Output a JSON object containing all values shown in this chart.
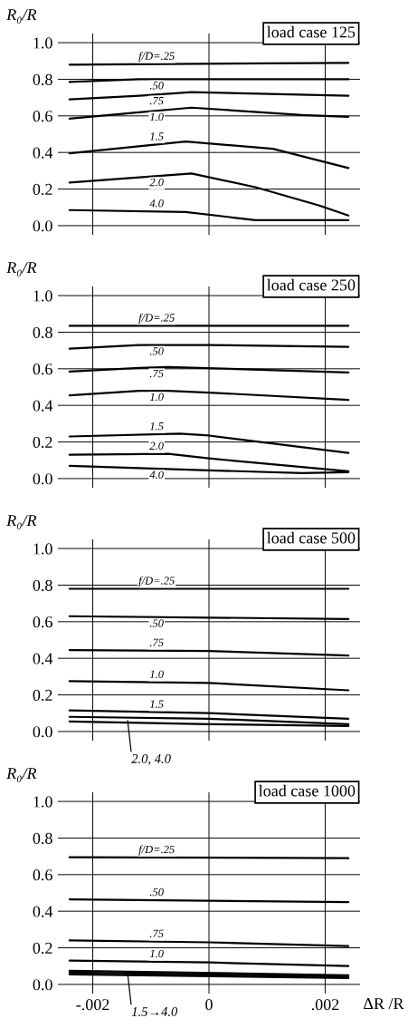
{
  "chart_data": [
    {
      "type": "line",
      "title": "load case 125",
      "ylabel": "R₀/R",
      "xlim": [
        -0.0026,
        0.0026
      ],
      "ylim": [
        -0.05,
        1.05
      ],
      "tick_labels": "y",
      "grid": true,
      "xticks": [
        {
          "value": -0.002,
          "label": null
        },
        {
          "value": 0,
          "label": null
        },
        {
          "value": 0.002,
          "label": null
        }
      ],
      "yticks": [
        {
          "value": 0,
          "label": "0.0"
        },
        {
          "value": 0.2,
          "label": "0.2"
        },
        {
          "value": 0.4,
          "label": "0.4"
        },
        {
          "value": 0.6,
          "label": "0.6"
        },
        {
          "value": 0.8,
          "label": "0.8"
        },
        {
          "value": 1.0,
          "label": "1.0"
        }
      ],
      "series": [
        {
          "name": "f/D=.25",
          "color": "#000000",
          "x": [
            -0.0024,
            0.0024
          ],
          "values": [
            0.88,
            0.89
          ]
        },
        {
          "name": ".50",
          "color": "#000000",
          "x": [
            -0.0024,
            -0.0012,
            0.0024
          ],
          "values": [
            0.785,
            0.8,
            0.8
          ]
        },
        {
          "name": ".75",
          "color": "#000000",
          "x": [
            -0.0024,
            -0.0012,
            -0.0003,
            0.0024
          ],
          "values": [
            0.69,
            0.71,
            0.73,
            0.71
          ]
        },
        {
          "name": "1.0",
          "color": "#000000",
          "x": [
            -0.0024,
            -0.0012,
            -0.0003,
            0.0016,
            0.0024
          ],
          "values": [
            0.585,
            0.62,
            0.645,
            0.605,
            0.595
          ]
        },
        {
          "name": "1.5",
          "color": "#000000",
          "x": [
            -0.0024,
            -0.0004,
            0.0011,
            0.0024
          ],
          "values": [
            0.395,
            0.46,
            0.42,
            0.315
          ]
        },
        {
          "name": "2.0",
          "color": "#000000",
          "x": [
            -0.0024,
            -0.0003,
            0.0008,
            0.0019,
            0.0024
          ],
          "values": [
            0.235,
            0.285,
            0.21,
            0.11,
            0.055
          ]
        },
        {
          "name": "4.0",
          "color": "#000000",
          "x": [
            -0.0024,
            -0.0004,
            0.0008,
            0.0024
          ],
          "values": [
            0.085,
            0.075,
            0.03,
            0.03
          ]
        }
      ]
    },
    {
      "type": "line",
      "title": "load case 250",
      "ylabel": "R₀/R",
      "xlim": [
        -0.0026,
        0.0026
      ],
      "ylim": [
        -0.05,
        1.05
      ],
      "tick_labels": "y",
      "grid": true,
      "xticks": [
        {
          "value": -0.002,
          "label": null
        },
        {
          "value": 0,
          "label": null
        },
        {
          "value": 0.002,
          "label": null
        }
      ],
      "yticks": [
        {
          "value": 0,
          "label": "0.0"
        },
        {
          "value": 0.2,
          "label": "0.2"
        },
        {
          "value": 0.4,
          "label": "0.4"
        },
        {
          "value": 0.6,
          "label": "0.6"
        },
        {
          "value": 0.8,
          "label": "0.8"
        },
        {
          "value": 1.0,
          "label": "1.0"
        }
      ],
      "series": [
        {
          "name": "f/D=.25",
          "color": "#000000",
          "x": [
            -0.0024,
            0.0024
          ],
          "values": [
            0.835,
            0.835
          ]
        },
        {
          "name": ".50",
          "color": "#000000",
          "x": [
            -0.0024,
            -0.0012,
            0.0,
            0.0024
          ],
          "values": [
            0.71,
            0.73,
            0.73,
            0.72
          ]
        },
        {
          "name": ".75",
          "color": "#000000",
          "x": [
            -0.0024,
            -0.0012,
            -0.0007,
            0.0024
          ],
          "values": [
            0.585,
            0.605,
            0.61,
            0.58
          ]
        },
        {
          "name": "1.0",
          "color": "#000000",
          "x": [
            -0.0024,
            -0.0012,
            -0.0007,
            0.0,
            0.0024
          ],
          "values": [
            0.455,
            0.48,
            0.48,
            0.47,
            0.43
          ]
        },
        {
          "name": "1.5",
          "color": "#000000",
          "x": [
            -0.0024,
            -0.0005,
            0.0,
            0.0024
          ],
          "values": [
            0.23,
            0.245,
            0.235,
            0.14
          ]
        },
        {
          "name": "2.0",
          "color": "#000000",
          "x": [
            -0.0024,
            -0.0007,
            0.0,
            0.0024
          ],
          "values": [
            0.13,
            0.135,
            0.11,
            0.04
          ]
        },
        {
          "name": "4.0",
          "color": "#000000",
          "x": [
            -0.0024,
            0.0,
            0.0016,
            0.0024
          ],
          "values": [
            0.07,
            0.045,
            0.03,
            0.035
          ]
        }
      ]
    },
    {
      "type": "line",
      "title": "load case 500",
      "ylabel": "R₀/R",
      "xlim": [
        -0.0026,
        0.0026
      ],
      "ylim": [
        -0.05,
        1.05
      ],
      "tick_labels": "y",
      "grid": true,
      "xticks": [
        {
          "value": -0.002,
          "label": null
        },
        {
          "value": 0,
          "label": null
        },
        {
          "value": 0.002,
          "label": null
        }
      ],
      "yticks": [
        {
          "value": 0,
          "label": "0.0"
        },
        {
          "value": 0.2,
          "label": "0.2"
        },
        {
          "value": 0.4,
          "label": "0.4"
        },
        {
          "value": 0.6,
          "label": "0.6"
        },
        {
          "value": 0.8,
          "label": "0.8"
        },
        {
          "value": 1.0,
          "label": "1.0"
        }
      ],
      "annotations": [
        {
          "text": "2.0, 4.0",
          "x": -0.0014,
          "y": 0.06
        }
      ],
      "series": [
        {
          "name": "f/D=.25",
          "color": "#000000",
          "x": [
            -0.0024,
            0.0024
          ],
          "values": [
            0.78,
            0.78
          ]
        },
        {
          "name": ".50",
          "color": "#000000",
          "x": [
            -0.0024,
            0.0024
          ],
          "values": [
            0.63,
            0.615
          ]
        },
        {
          "name": ".75",
          "color": "#000000",
          "x": [
            -0.0024,
            0.0,
            0.0024
          ],
          "values": [
            0.445,
            0.44,
            0.415
          ]
        },
        {
          "name": "1.0",
          "color": "#000000",
          "x": [
            -0.0024,
            0.0,
            0.0024
          ],
          "values": [
            0.275,
            0.265,
            0.225
          ]
        },
        {
          "name": "1.5",
          "color": "#000000",
          "x": [
            -0.0024,
            0.0,
            0.0024
          ],
          "values": [
            0.115,
            0.1,
            0.07
          ]
        },
        {
          "color": "#000000",
          "x": [
            -0.0024,
            0.0,
            0.0024
          ],
          "values": [
            0.08,
            0.07,
            0.04
          ]
        },
        {
          "color": "#000000",
          "x": [
            -0.0024,
            0.0,
            0.0024
          ],
          "values": [
            0.055,
            0.04,
            0.03
          ]
        }
      ]
    },
    {
      "type": "line",
      "title": "load case 1000",
      "ylabel": "R₀/R",
      "xlabel": "ΔR /R",
      "xlim": [
        -0.0026,
        0.0026
      ],
      "ylim": [
        -0.05,
        1.05
      ],
      "grid": true,
      "xticks": [
        {
          "value": -0.002,
          "label": "-.002"
        },
        {
          "value": 0,
          "label": "0"
        },
        {
          "value": 0.002,
          "label": ".002"
        }
      ],
      "yticks": [
        {
          "value": 0,
          "label": "0.0"
        },
        {
          "value": 0.2,
          "label": "0.2"
        },
        {
          "value": 0.4,
          "label": "0.4"
        },
        {
          "value": 0.6,
          "label": "0.6"
        },
        {
          "value": 0.8,
          "label": "0.8"
        },
        {
          "value": 1.0,
          "label": "1.0"
        }
      ],
      "annotations": [
        {
          "text": "1.5→4.0",
          "x": -0.0014,
          "y": 0.06
        }
      ],
      "series": [
        {
          "name": "f/D=.25",
          "color": "#000000",
          "x": [
            -0.0024,
            0.0024
          ],
          "values": [
            0.695,
            0.69
          ]
        },
        {
          "name": ".50",
          "color": "#000000",
          "x": [
            -0.0024,
            0.0024
          ],
          "values": [
            0.465,
            0.45
          ]
        },
        {
          "name": ".75",
          "color": "#000000",
          "x": [
            -0.0024,
            0.0,
            0.0024
          ],
          "values": [
            0.24,
            0.23,
            0.21
          ]
        },
        {
          "name": "1.0",
          "color": "#000000",
          "x": [
            -0.0024,
            0.0,
            0.0024
          ],
          "values": [
            0.13,
            0.12,
            0.1
          ]
        },
        {
          "color": "#000000",
          "x": [
            -0.0024,
            0.0024
          ],
          "values": [
            0.075,
            0.05
          ]
        },
        {
          "color": "#000000",
          "x": [
            -0.0024,
            0.0024
          ],
          "values": [
            0.065,
            0.043
          ]
        },
        {
          "color": "#000000",
          "x": [
            -0.0024,
            0.0024
          ],
          "values": [
            0.055,
            0.035
          ]
        }
      ]
    }
  ]
}
